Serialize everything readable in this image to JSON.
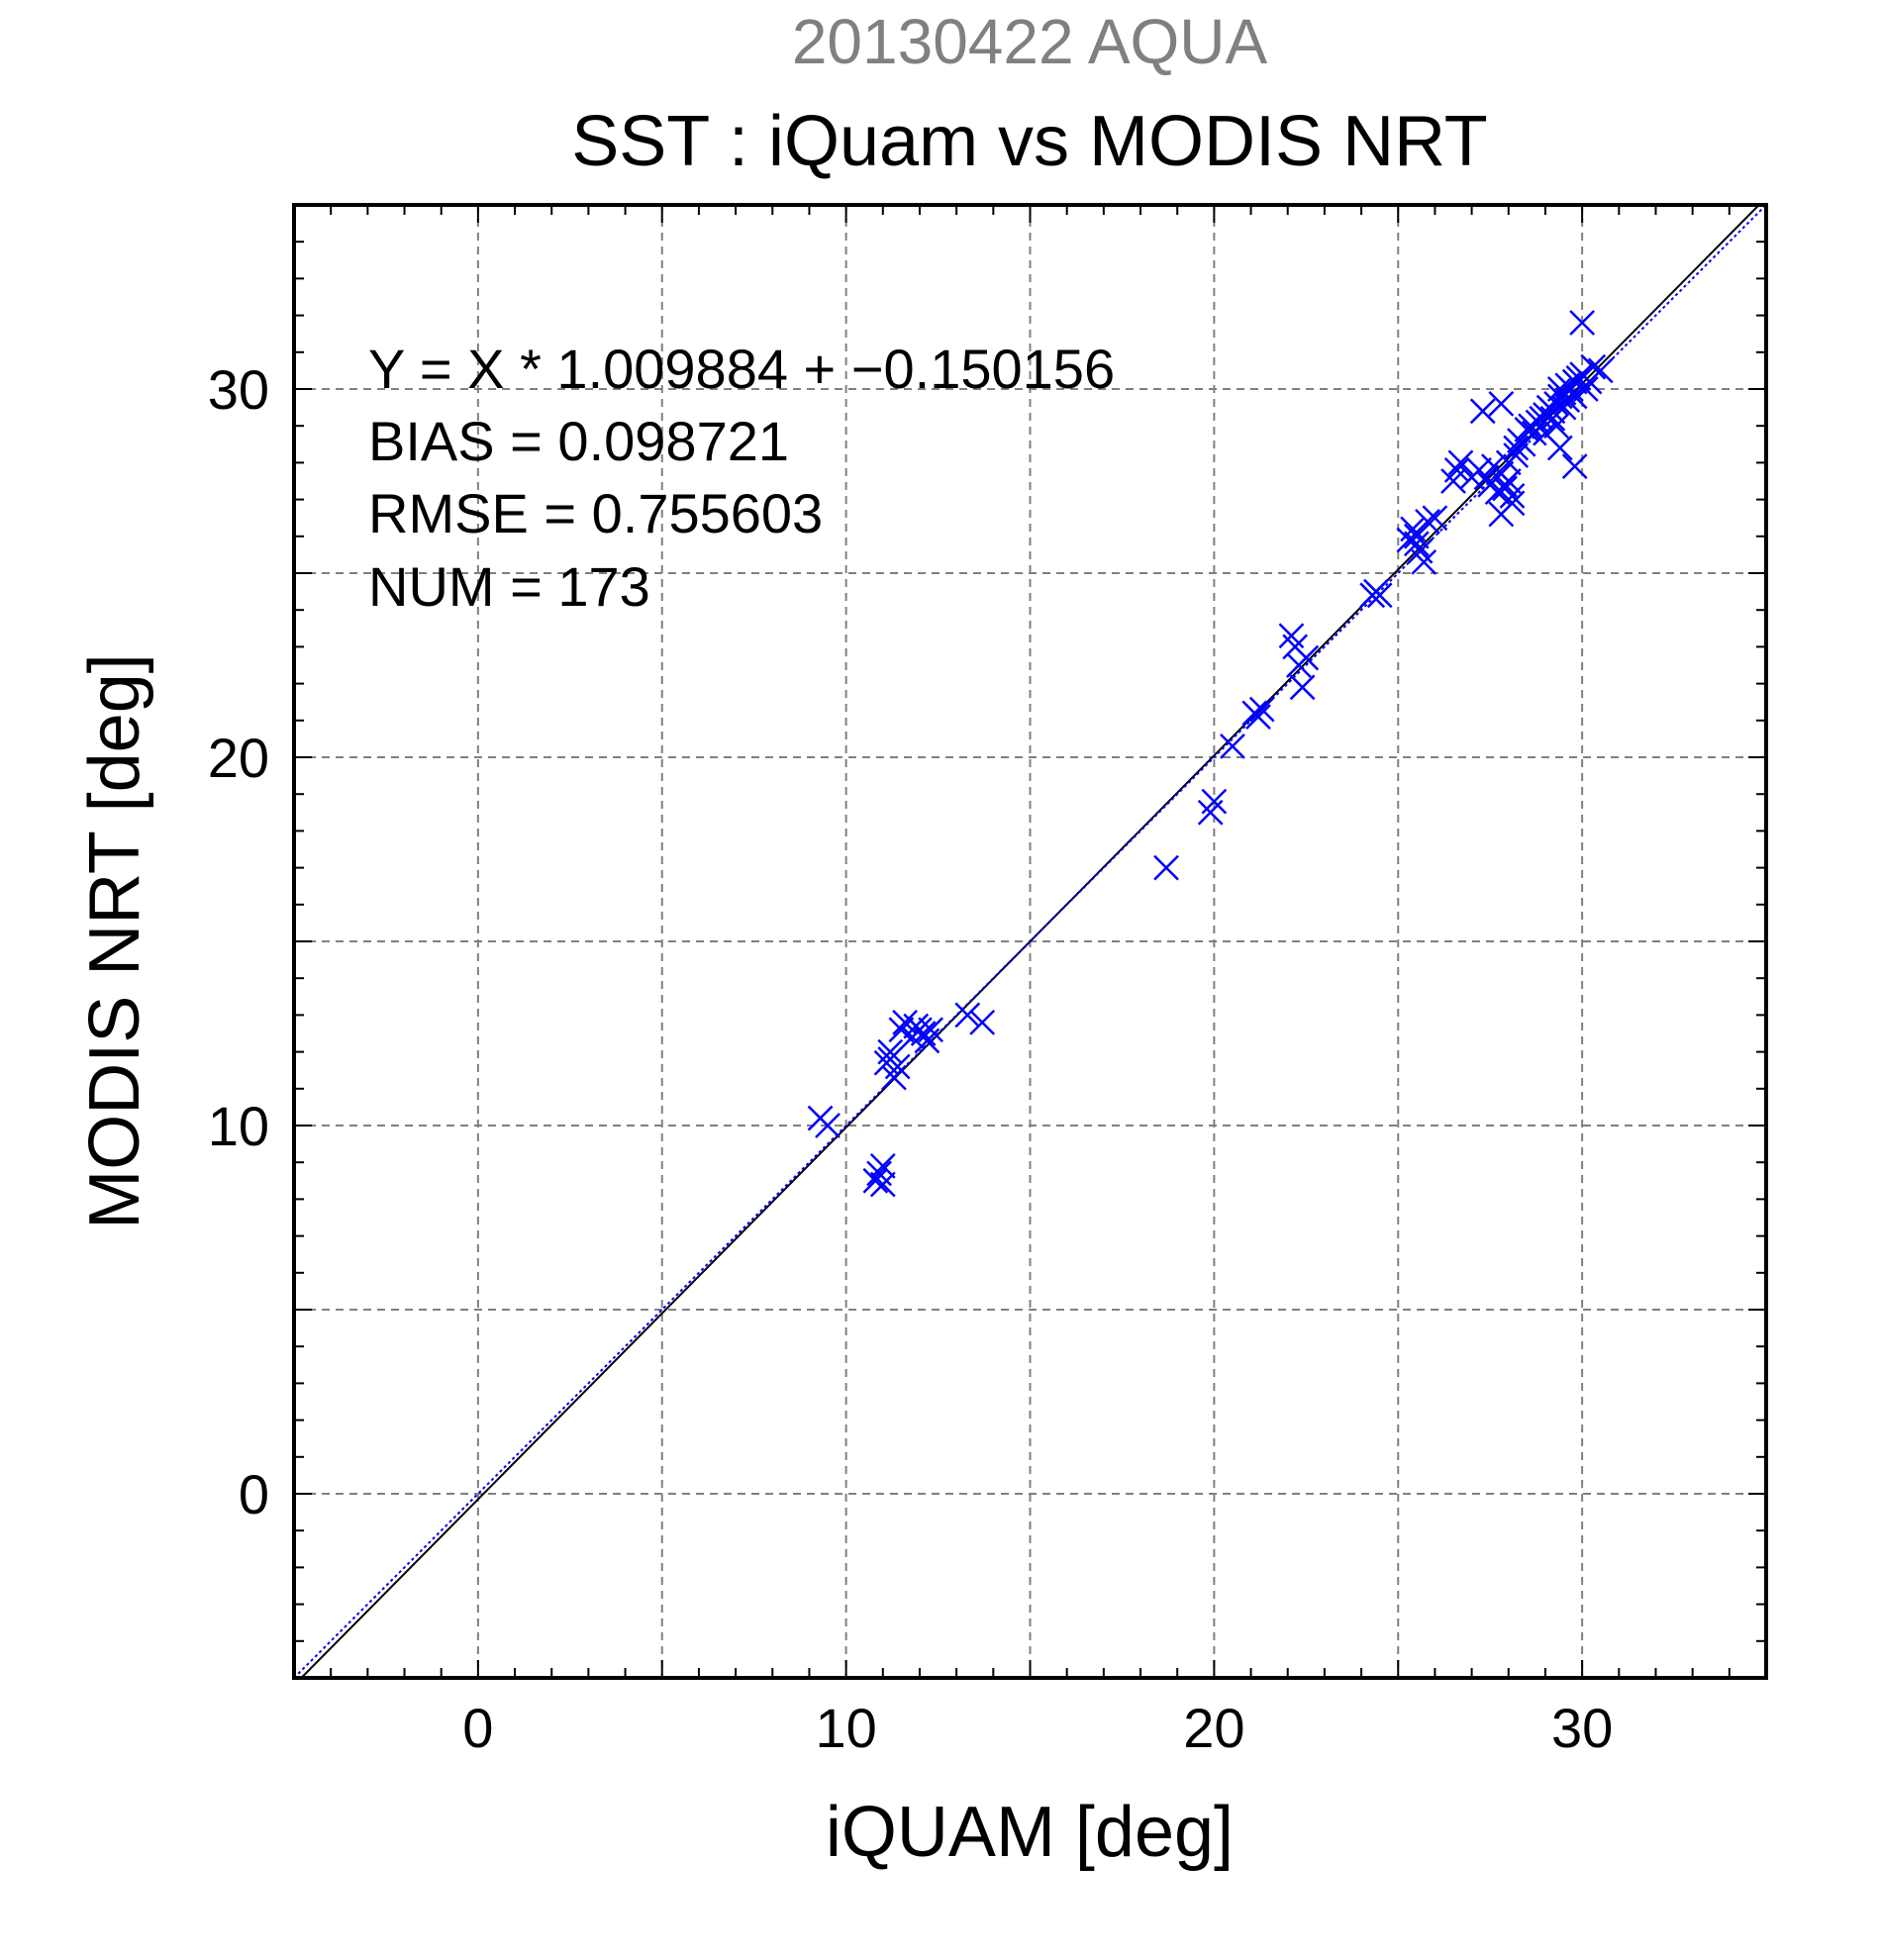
{
  "chart_data": {
    "type": "scatter",
    "date_label": "20130422 AQUA",
    "title": "SST : iQuam vs MODIS NRT",
    "xlabel": "iQUAM [deg]",
    "ylabel": "MODIS NRT [deg]",
    "xlim": [
      -5,
      35
    ],
    "ylim": [
      -5,
      35
    ],
    "xticks": [
      0,
      10,
      20,
      30
    ],
    "yticks": [
      0,
      10,
      20,
      30
    ],
    "xtick_labels": [
      "0",
      "10",
      "20",
      "30"
    ],
    "ytick_labels": [
      "0",
      "10",
      "20",
      "30"
    ],
    "grid": true,
    "stats": [
      "Y = X * 1.009884 + −0.150156",
      "BIAS = 0.098721",
      "RMSE = 0.755603",
      "NUM = 173"
    ],
    "colors": {
      "points": "#0000ff",
      "fit_line": "#000000",
      "reference_line": "#0000ff",
      "grid": "#808080",
      "date_label": "#808080"
    },
    "lines": [
      {
        "role": "regression",
        "slope": 1.009884,
        "intercept": -0.150156,
        "style": "solid"
      },
      {
        "role": "one-to-one",
        "slope": 1,
        "intercept": 0,
        "style": "dotted"
      }
    ],
    "series": [
      {
        "marker": "x",
        "x": [
          9.3,
          9.5,
          10.8,
          10.9,
          11.0,
          11.0,
          11.1,
          11.2,
          11.3,
          11.4,
          11.2,
          11.5,
          11.6,
          11.8,
          11.9,
          12.0,
          12.1,
          12.2,
          12.3,
          13.3,
          13.7,
          18.7,
          19.9,
          20.0,
          20.5,
          21.1,
          21.2,
          21.3,
          22.1,
          22.2,
          22.3,
          22.5,
          22.4,
          24.3,
          24.4,
          24.5,
          25.3,
          25.4,
          25.5,
          25.6,
          25.5,
          25.7,
          25.8,
          26.0,
          26.5,
          26.6,
          26.7,
          27.0,
          27.2,
          27.4,
          27.5,
          27.6,
          27.7,
          27.8,
          27.8,
          27.9,
          28.0,
          28.0,
          28.1,
          28.2,
          28.2,
          28.3,
          28.4,
          28.5,
          28.6,
          28.7,
          28.8,
          28.9,
          29.0,
          29.0,
          29.1,
          29.2,
          29.2,
          29.3,
          29.3,
          29.4,
          29.4,
          29.5,
          29.5,
          29.6,
          29.6,
          29.7,
          29.8,
          29.8,
          29.9,
          30.0,
          30.0,
          30.1,
          30.2,
          30.3,
          30.5,
          27.3,
          27.8,
          27.9,
          28.1,
          29.8,
          29.4
        ],
        "y": [
          10.2,
          10.0,
          8.5,
          8.7,
          8.9,
          8.4,
          11.7,
          12.0,
          11.3,
          11.6,
          11.8,
          12.6,
          12.8,
          12.4,
          12.7,
          12.6,
          12.5,
          12.3,
          12.6,
          13.0,
          12.8,
          17.0,
          18.5,
          18.8,
          20.3,
          21.2,
          21.1,
          21.3,
          23.3,
          23.0,
          22.5,
          22.7,
          21.9,
          24.4,
          24.5,
          24.4,
          25.9,
          26.2,
          25.8,
          25.6,
          26.0,
          25.3,
          26.4,
          26.5,
          27.5,
          27.8,
          28.0,
          27.6,
          27.8,
          27.6,
          27.4,
          27.9,
          27.2,
          27.7,
          26.6,
          27.3,
          27.5,
          28.0,
          27.1,
          28.2,
          28.4,
          28.6,
          28.5,
          28.9,
          29.0,
          28.8,
          29.1,
          29.2,
          29.3,
          28.8,
          29.5,
          29.4,
          29.2,
          29.6,
          29.0,
          29.8,
          30.0,
          29.5,
          29.9,
          30.1,
          29.7,
          30.0,
          30.2,
          29.8,
          30.3,
          30.4,
          31.8,
          30.0,
          30.2,
          30.6,
          30.5,
          29.4,
          29.6,
          27.4,
          26.9,
          27.9,
          28.4
        ]
      }
    ]
  }
}
